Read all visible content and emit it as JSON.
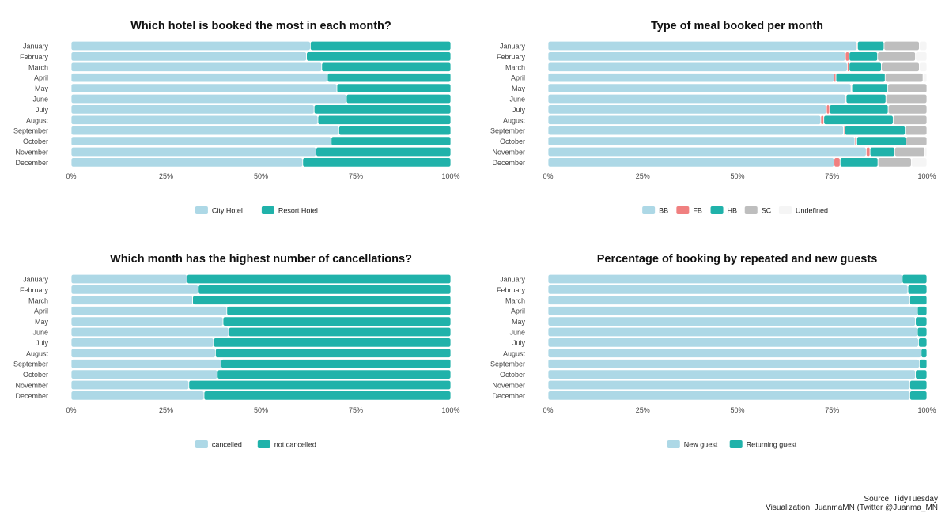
{
  "colors": {
    "light_blue": "#add8e6",
    "teal": "#20b2aa",
    "salmon": "#f08080",
    "grey": "#bebebe",
    "whitesmoke": "#f5f5f5"
  },
  "caption": {
    "source": "Source: TidyTuesday",
    "credit": "Visualization: JuanmaMN (Twitter @Juanma_MN"
  },
  "chart_data": [
    {
      "type": "bar",
      "orientation": "horizontal-stacked-100",
      "title": "Which hotel is booked the most in each month?",
      "categories": [
        "January",
        "February",
        "March",
        "April",
        "May",
        "June",
        "July",
        "August",
        "September",
        "October",
        "November",
        "December"
      ],
      "series": [
        {
          "name": "City Hotel",
          "color": "#add8e6",
          "values": [
            0.63,
            0.62,
            0.66,
            0.675,
            0.7,
            0.725,
            0.64,
            0.65,
            0.705,
            0.685,
            0.645,
            0.61
          ]
        },
        {
          "name": "Resort Hotel",
          "color": "#20b2aa",
          "values": [
            0.37,
            0.38,
            0.34,
            0.325,
            0.3,
            0.275,
            0.36,
            0.35,
            0.295,
            0.315,
            0.355,
            0.39
          ]
        }
      ],
      "x_ticks": [
        "0%",
        "25%",
        "50%",
        "75%",
        "100%"
      ],
      "xlim": [
        0,
        1
      ],
      "legend_position": "bottom"
    },
    {
      "type": "bar",
      "orientation": "horizontal-stacked-100",
      "title": "Type of meal booked per month",
      "categories": [
        "January",
        "February",
        "March",
        "April",
        "May",
        "June",
        "July",
        "August",
        "September",
        "October",
        "November",
        "December"
      ],
      "series": [
        {
          "name": "BB",
          "color": "#add8e6",
          "values": [
            0.815,
            0.785,
            0.79,
            0.755,
            0.8,
            0.785,
            0.735,
            0.72,
            0.78,
            0.81,
            0.84,
            0.755
          ]
        },
        {
          "name": "FB",
          "color": "#f08080",
          "values": [
            0.002,
            0.01,
            0.005,
            0.005,
            0.002,
            0.002,
            0.008,
            0.008,
            0.003,
            0.005,
            0.01,
            0.016
          ]
        },
        {
          "name": "HB",
          "color": "#20b2aa",
          "values": [
            0.07,
            0.075,
            0.085,
            0.13,
            0.095,
            0.105,
            0.155,
            0.183,
            0.16,
            0.13,
            0.065,
            0.1
          ]
        },
        {
          "name": "SC",
          "color": "#bebebe",
          "values": [
            0.093,
            0.1,
            0.1,
            0.1,
            0.103,
            0.108,
            0.102,
            0.089,
            0.057,
            0.055,
            0.08,
            0.088
          ]
        },
        {
          "name": "Undefined",
          "color": "#f5f5f5",
          "values": [
            0.02,
            0.03,
            0.02,
            0.01,
            0.0,
            0.0,
            0.0,
            0.0,
            0.0,
            0.0,
            0.005,
            0.041
          ]
        }
      ],
      "x_ticks": [
        "0%",
        "25%",
        "50%",
        "75%",
        "100%"
      ],
      "xlim": [
        0,
        1
      ],
      "legend_position": "bottom"
    },
    {
      "type": "bar",
      "orientation": "horizontal-stacked-100",
      "title": "Which month has the highest number of cancellations?",
      "categories": [
        "January",
        "February",
        "March",
        "April",
        "May",
        "June",
        "July",
        "August",
        "September",
        "October",
        "November",
        "December"
      ],
      "series": [
        {
          "name": "cancelled",
          "color": "#add8e6",
          "values": [
            0.305,
            0.335,
            0.32,
            0.41,
            0.4,
            0.415,
            0.375,
            0.38,
            0.395,
            0.385,
            0.31,
            0.35
          ]
        },
        {
          "name": "not cancelled",
          "color": "#20b2aa",
          "values": [
            0.695,
            0.665,
            0.68,
            0.59,
            0.6,
            0.585,
            0.625,
            0.62,
            0.605,
            0.615,
            0.69,
            0.65
          ]
        }
      ],
      "x_ticks": [
        "0%",
        "25%",
        "50%",
        "75%",
        "100%"
      ],
      "xlim": [
        0,
        1
      ],
      "legend_position": "bottom"
    },
    {
      "type": "bar",
      "orientation": "horizontal-stacked-100",
      "title": "Percentage of booking by repeated and new guests",
      "categories": [
        "January",
        "February",
        "March",
        "April",
        "May",
        "June",
        "July",
        "August",
        "September",
        "October",
        "November",
        "December"
      ],
      "series": [
        {
          "name": "New guest",
          "color": "#add8e6",
          "values": [
            0.935,
            0.95,
            0.955,
            0.975,
            0.97,
            0.975,
            0.978,
            0.985,
            0.98,
            0.97,
            0.955,
            0.955
          ]
        },
        {
          "name": "Returning guest",
          "color": "#20b2aa",
          "values": [
            0.065,
            0.05,
            0.045,
            0.025,
            0.03,
            0.025,
            0.022,
            0.015,
            0.02,
            0.03,
            0.045,
            0.045
          ]
        }
      ],
      "x_ticks": [
        "0%",
        "25%",
        "50%",
        "75%",
        "100%"
      ],
      "xlim": [
        0,
        1
      ],
      "legend_position": "bottom"
    }
  ]
}
